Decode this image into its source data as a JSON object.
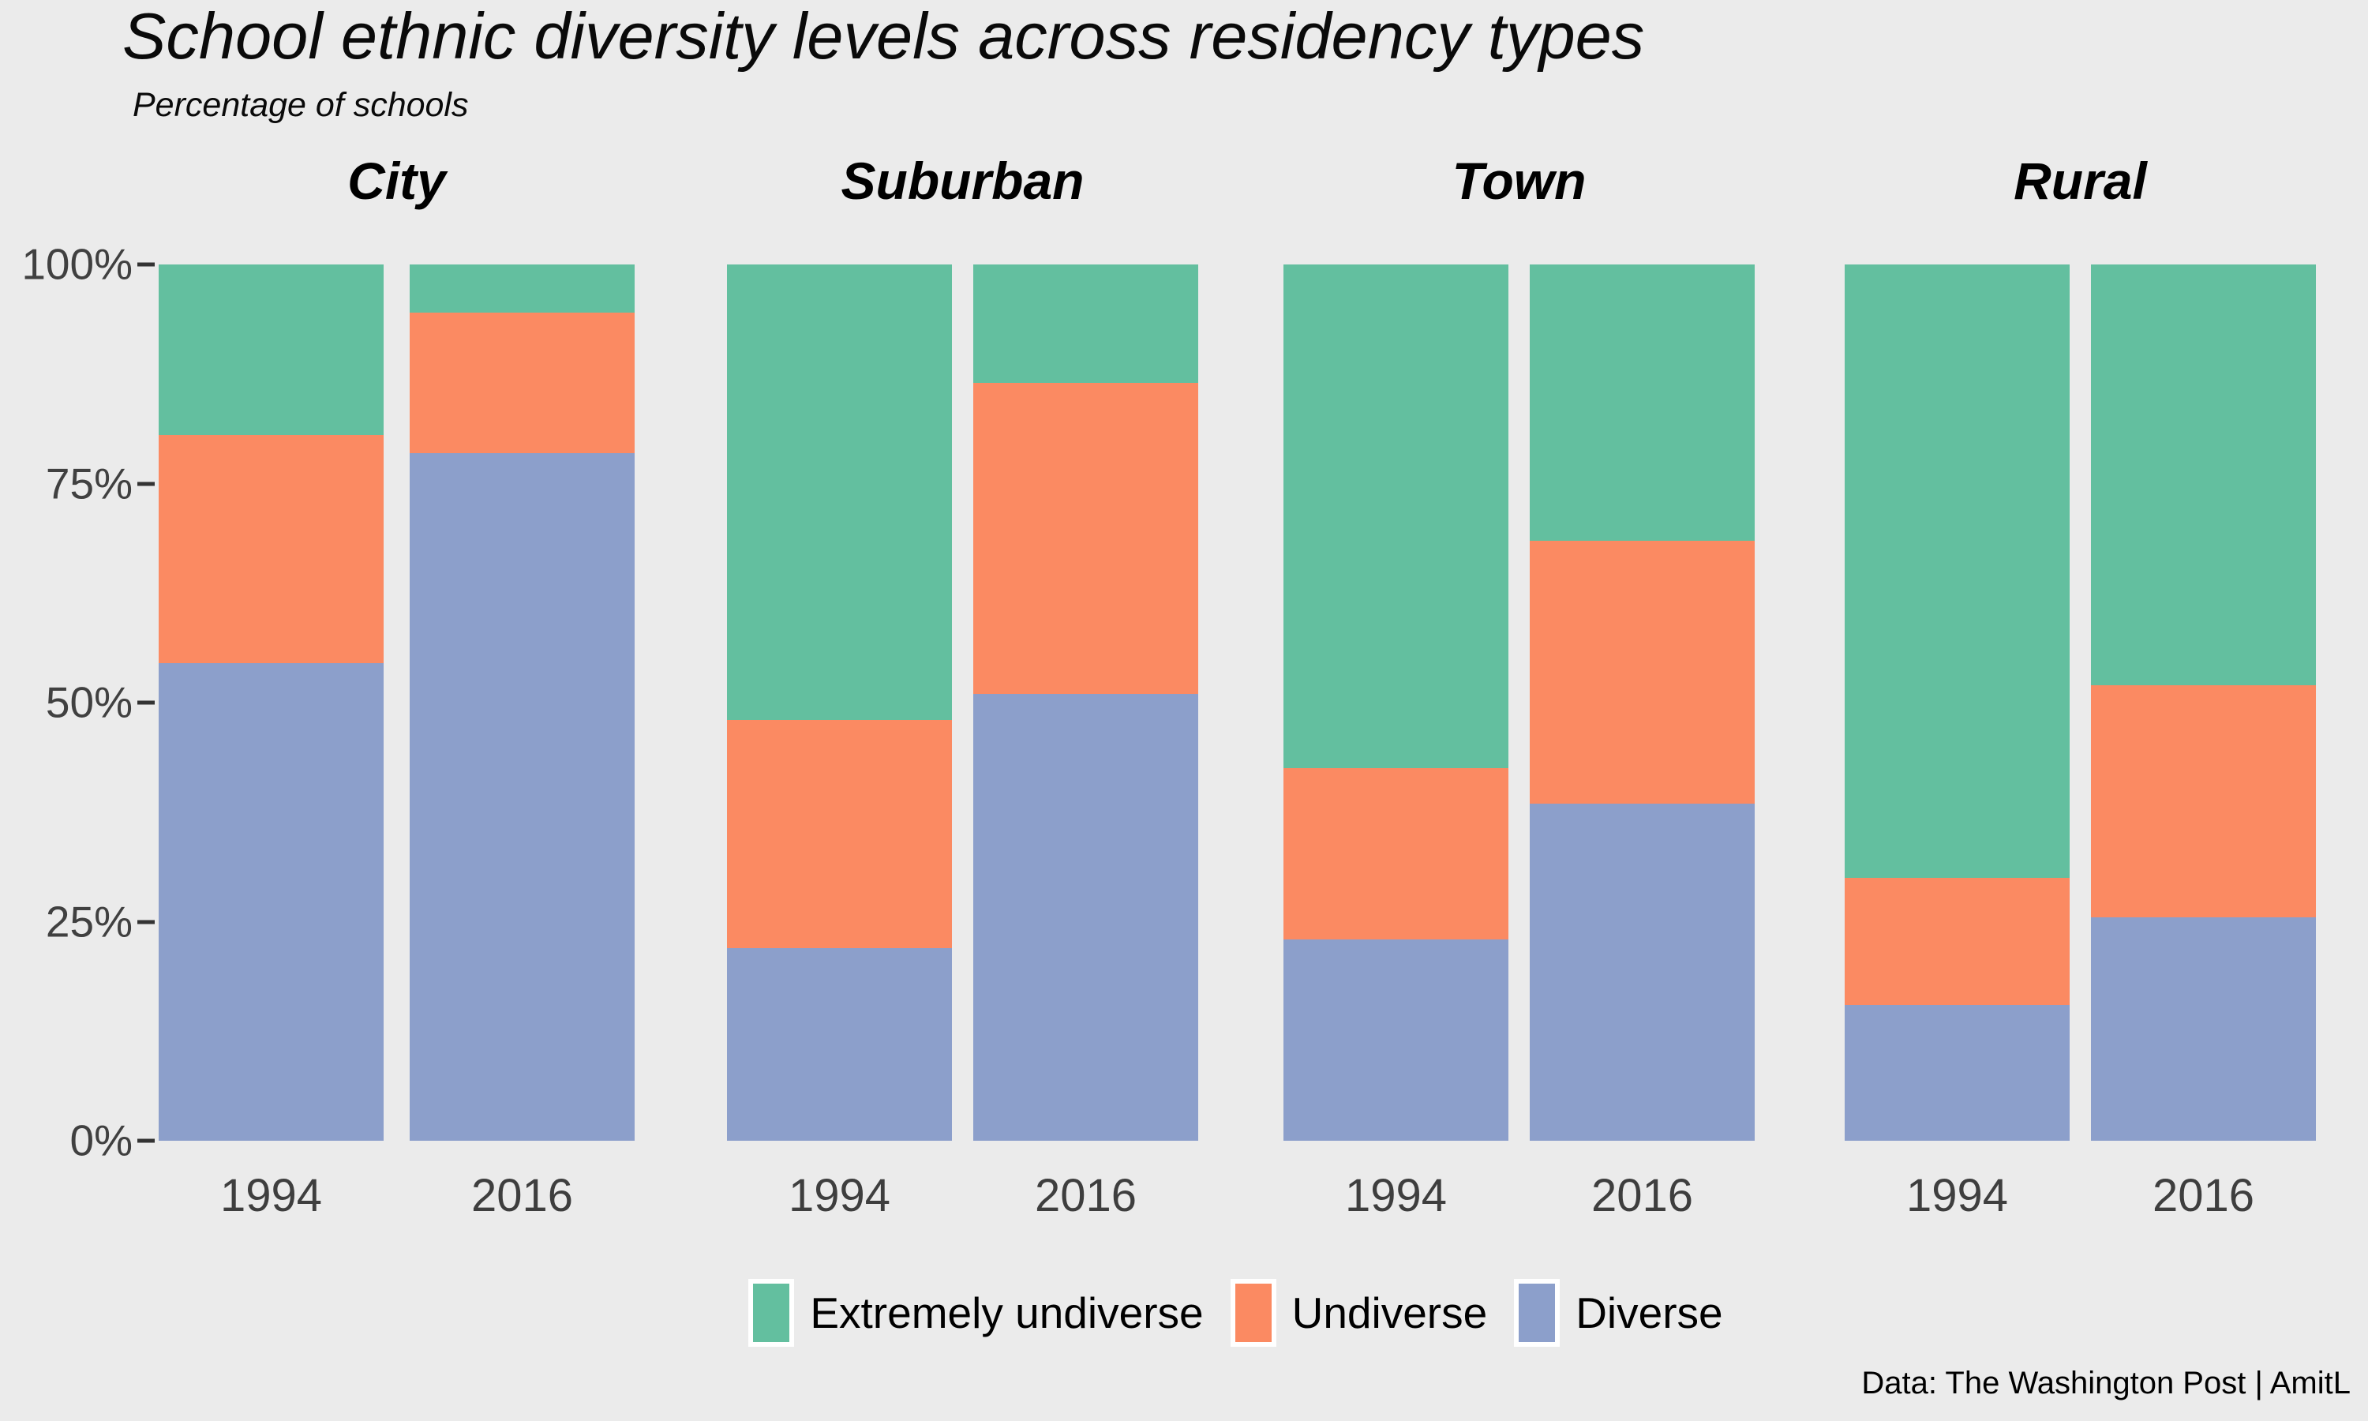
{
  "chart": {
    "title": "School ethnic diversity levels across residency types",
    "subtitle": "Percentage of schools",
    "caption": "Data: The Washington Post | AmitL"
  },
  "chart_data": {
    "type": "bar",
    "stacked": true,
    "orientation": "vertical",
    "title": "School ethnic diversity levels across residency types",
    "subtitle": "Percentage of schools",
    "caption": "Data: The Washington Post | AmitL",
    "facets": [
      "City",
      "Suburban",
      "Town",
      "Rural"
    ],
    "categories": [
      "1994",
      "2016"
    ],
    "series": [
      {
        "name": "Extremely undiverse",
        "color": "#63BF9F",
        "values": {
          "City": [
            19.5,
            5.5
          ],
          "Suburban": [
            52,
            13.5
          ],
          "Town": [
            57.5,
            31.5
          ],
          "Rural": [
            70,
            48
          ]
        }
      },
      {
        "name": "Undiverse",
        "color": "#FB8A62",
        "values": {
          "City": [
            26,
            16
          ],
          "Suburban": [
            26,
            35.5
          ],
          "Town": [
            19.5,
            30
          ],
          "Rural": [
            14.5,
            26.5
          ]
        }
      },
      {
        "name": "Diverse",
        "color": "#8C9FCB",
        "values": {
          "City": [
            54.5,
            78.5
          ],
          "Suburban": [
            22,
            51
          ],
          "Town": [
            23,
            38.5
          ],
          "Rural": [
            15.5,
            25.5
          ]
        }
      }
    ],
    "ylim": [
      0,
      100
    ],
    "y_tick_labels": [
      "0%",
      "25%",
      "50%",
      "75%",
      "100%"
    ],
    "y_unit": "percent",
    "grid": false,
    "legend_position": "bottom",
    "background_color": "#EBEBEB",
    "axis_text_color": "#3E3E3E"
  }
}
